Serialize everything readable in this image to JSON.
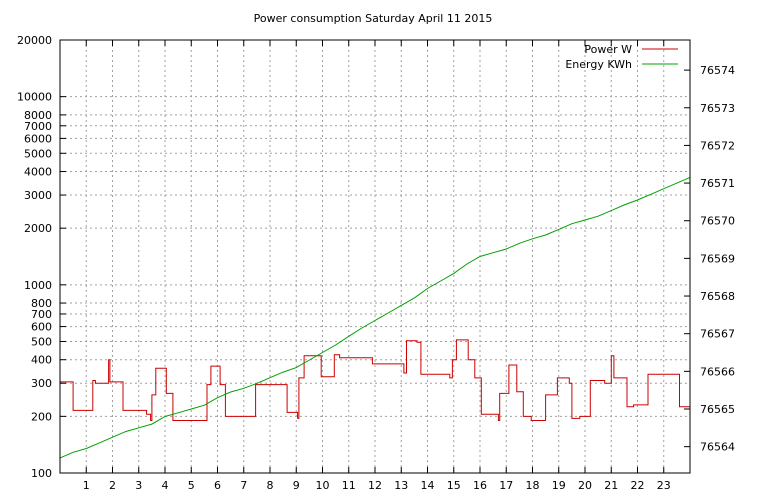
{
  "chart_data": {
    "type": "line",
    "title": "Power consumption Saturday April 11 2015",
    "xlabel": "",
    "ylabel": "",
    "y2label": "",
    "x_range": [
      0,
      24
    ],
    "x_ticks": [
      "1",
      "2",
      "3",
      "4",
      "5",
      "6",
      "7",
      "8",
      "9",
      "10",
      "11",
      "12",
      "13",
      "14",
      "15",
      "16",
      "17",
      "18",
      "19",
      "20",
      "21",
      "22",
      "23"
    ],
    "y_scale": "log",
    "y_range": [
      100,
      20000
    ],
    "y_ticks": [
      "100",
      "200",
      "300",
      "400",
      "500",
      "600",
      "700",
      "800",
      "1000",
      "2000",
      "3000",
      "4000",
      "5000",
      "6000",
      "7000",
      "8000",
      "10000",
      "20000"
    ],
    "y2_range": [
      76563.3,
      76574.8
    ],
    "y2_ticks": [
      "76564",
      "76565",
      "76566",
      "76567",
      "76568",
      "76569",
      "76570",
      "76571",
      "76572",
      "76573",
      "76574"
    ],
    "grid": true,
    "legend_position": "top-right",
    "series": [
      {
        "name": "Power W",
        "axis": "y",
        "color": "#cc0000",
        "step": true,
        "points": [
          [
            0,
            305
          ],
          [
            0.5,
            215
          ],
          [
            1.25,
            310
          ],
          [
            1.35,
            300
          ],
          [
            1.85,
            400
          ],
          [
            1.9,
            305
          ],
          [
            2.4,
            215
          ],
          [
            3.3,
            205
          ],
          [
            3.45,
            190
          ],
          [
            3.5,
            260
          ],
          [
            3.65,
            360
          ],
          [
            4.05,
            265
          ],
          [
            4.3,
            190
          ],
          [
            5.6,
            295
          ],
          [
            5.75,
            370
          ],
          [
            6.1,
            295
          ],
          [
            6.3,
            200
          ],
          [
            7.45,
            295
          ],
          [
            8.65,
            210
          ],
          [
            9.05,
            195
          ],
          [
            9.1,
            320
          ],
          [
            9.3,
            420
          ],
          [
            9.95,
            325
          ],
          [
            10.45,
            425
          ],
          [
            10.65,
            410
          ],
          [
            11.9,
            380
          ],
          [
            13.1,
            340
          ],
          [
            13.2,
            505
          ],
          [
            13.6,
            495
          ],
          [
            13.75,
            335
          ],
          [
            14.85,
            320
          ],
          [
            14.95,
            400
          ],
          [
            15.1,
            510
          ],
          [
            15.55,
            400
          ],
          [
            15.8,
            320
          ],
          [
            16.05,
            205
          ],
          [
            16.7,
            190
          ],
          [
            16.75,
            265
          ],
          [
            17.1,
            375
          ],
          [
            17.4,
            270
          ],
          [
            17.65,
            200
          ],
          [
            17.95,
            190
          ],
          [
            18.5,
            260
          ],
          [
            18.95,
            320
          ],
          [
            19.4,
            300
          ],
          [
            19.5,
            195
          ],
          [
            19.8,
            200
          ],
          [
            20.2,
            310
          ],
          [
            20.75,
            300
          ],
          [
            21.0,
            420
          ],
          [
            21.1,
            320
          ],
          [
            21.6,
            225
          ],
          [
            21.85,
            230
          ],
          [
            22.4,
            335
          ],
          [
            23.6,
            225
          ],
          [
            23.95,
            225
          ]
        ]
      },
      {
        "name": "Energy KWh",
        "axis": "y2",
        "color": "#00a000",
        "step": false,
        "points": [
          [
            0,
            76563.7
          ],
          [
            0.5,
            76563.85
          ],
          [
            1,
            76563.95
          ],
          [
            1.5,
            76564.1
          ],
          [
            2,
            76564.25
          ],
          [
            2.5,
            76564.4
          ],
          [
            3,
            76564.5
          ],
          [
            3.5,
            76564.6
          ],
          [
            4,
            76564.8
          ],
          [
            4.5,
            76564.9
          ],
          [
            5,
            76565.0
          ],
          [
            5.5,
            76565.1
          ],
          [
            6,
            76565.3
          ],
          [
            6.5,
            76565.45
          ],
          [
            7,
            76565.55
          ],
          [
            7.5,
            76565.68
          ],
          [
            8,
            76565.83
          ],
          [
            8.5,
            76565.98
          ],
          [
            9,
            76566.1
          ],
          [
            9.5,
            76566.3
          ],
          [
            10,
            76566.5
          ],
          [
            10.5,
            76566.7
          ],
          [
            11,
            76566.93
          ],
          [
            11.5,
            76567.15
          ],
          [
            12,
            76567.35
          ],
          [
            12.5,
            76567.55
          ],
          [
            13,
            76567.75
          ],
          [
            13.5,
            76567.95
          ],
          [
            14,
            76568.2
          ],
          [
            14.5,
            76568.4
          ],
          [
            15,
            76568.6
          ],
          [
            15.5,
            76568.85
          ],
          [
            16,
            76569.05
          ],
          [
            16.5,
            76569.15
          ],
          [
            17,
            76569.25
          ],
          [
            17.5,
            76569.4
          ],
          [
            18,
            76569.52
          ],
          [
            18.5,
            76569.62
          ],
          [
            19,
            76569.77
          ],
          [
            19.5,
            76569.92
          ],
          [
            20,
            76570.02
          ],
          [
            20.5,
            76570.12
          ],
          [
            21,
            76570.27
          ],
          [
            21.5,
            76570.42
          ],
          [
            22,
            76570.55
          ],
          [
            22.5,
            76570.7
          ],
          [
            23,
            76570.85
          ],
          [
            23.5,
            76571.0
          ],
          [
            24,
            76571.15
          ]
        ]
      }
    ]
  }
}
